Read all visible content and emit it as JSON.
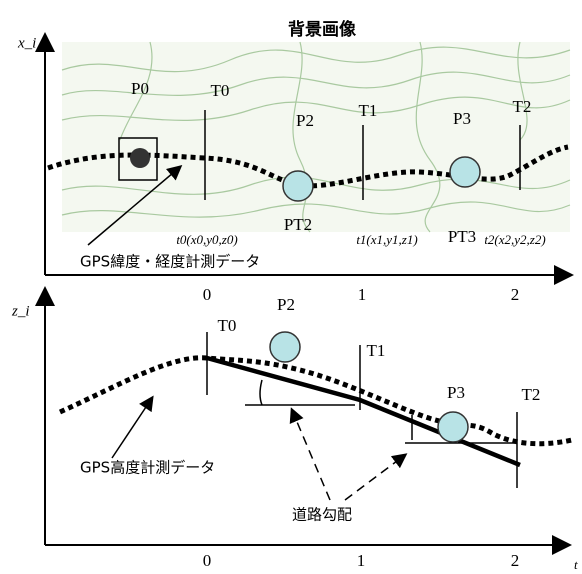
{
  "header": {
    "title": "背景画像"
  },
  "top": {
    "axis_label": "x_i",
    "p0": "P0",
    "t0": "T0",
    "p2": "P2",
    "t1": "T1",
    "p3": "P3",
    "t2": "T2",
    "pt2": "PT2",
    "pt3": "PT3",
    "t0_coord": "t0(x0,y0,z0)",
    "t1_coord": "t1(x1,y1,z1)",
    "t2_coord": "t2(x2,y2,z2)",
    "data_label": "GPS緯度・経度計測データ",
    "ticks": [
      "0",
      "1",
      "2"
    ]
  },
  "bottom": {
    "axis_label": "z_i",
    "t0": "T0",
    "p2": "P2",
    "t1": "T1",
    "p3": "P3",
    "t2": "T2",
    "data_label": "GPS高度計測データ",
    "gradient_label": "道路勾配",
    "ticks": [
      "0",
      "1",
      "2"
    ],
    "x_label": "t"
  }
}
